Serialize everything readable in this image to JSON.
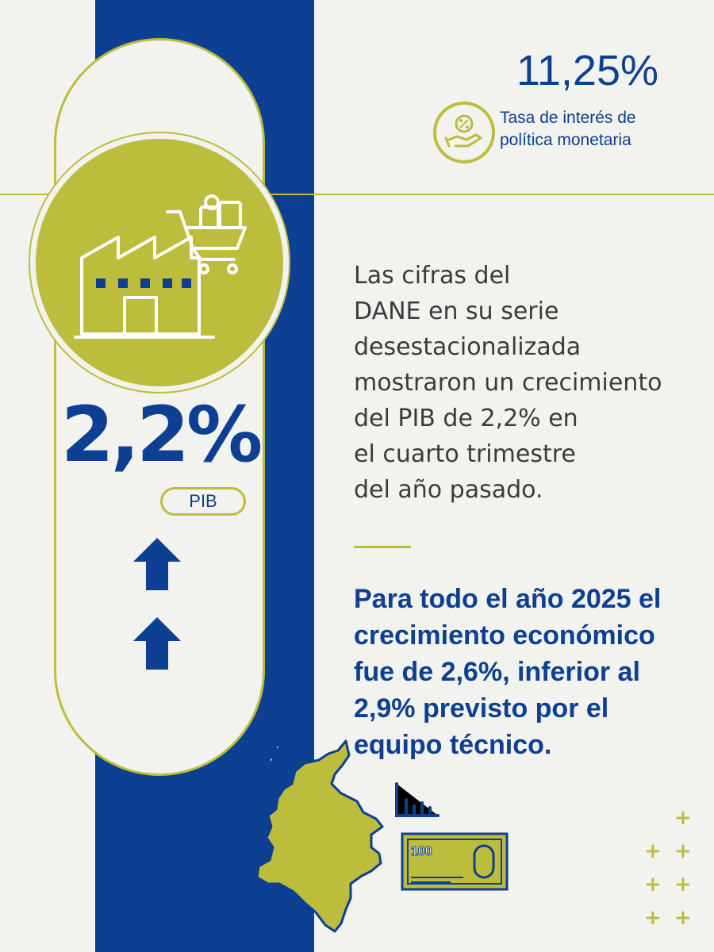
{
  "rate": {
    "value": "11,25%",
    "label_lines": [
      "Tasa de interés de",
      "política monetaria"
    ],
    "icon": "percent-hand-icon"
  },
  "pib": {
    "value": "2,2%",
    "label": "PIB",
    "icon": "factory-cart-icon",
    "trend_icon": "up-arrow-icon"
  },
  "body": {
    "lines": [
      "Las cifras del",
      "DANE en su serie",
      "desestacionalizada",
      "mostraron un crecimiento",
      "del PIB de 2,2% en",
      "el cuarto trimestre",
      "del año pasado."
    ]
  },
  "highlight": {
    "lines": [
      "Para todo el año 2025 el",
      "crecimiento económico",
      "fue de 2,6%, inferior al",
      "2,9% previsto por el",
      "equipo técnico."
    ]
  },
  "decorations": {
    "banknote_text": "100",
    "icons": [
      "colombia-map-icon",
      "bar-chart-icon",
      "banknote-icon",
      "plus-icon"
    ]
  },
  "colors": {
    "blue": "#0d3f92",
    "olive": "#bcbd3c",
    "background": "#f2f2ee",
    "text": "#3b3b3b"
  }
}
